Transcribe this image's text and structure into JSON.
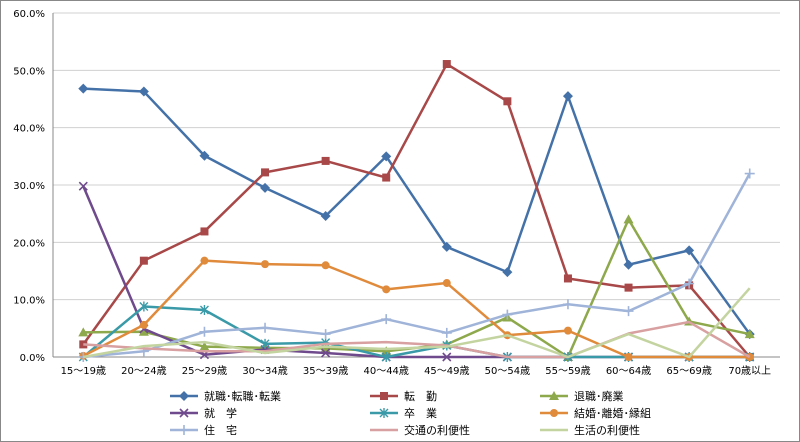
{
  "chart_data": {
    "type": "line",
    "categories": [
      "15～19歳",
      "20～24歳",
      "25～29歳",
      "30～34歳",
      "35～39歳",
      "40～44歳",
      "45～49歳",
      "50～54歳",
      "55～59歳",
      "60～64歳",
      "65～69歳",
      "70歳以上"
    ],
    "ylim": [
      0,
      60
    ],
    "yticks": [
      "0.0%",
      "10.0%",
      "20.0%",
      "30.0%",
      "40.0%",
      "50.0%",
      "60.0%"
    ],
    "grid": true,
    "legend_position": "bottom",
    "series": [
      {
        "name": "就職･転職･転業",
        "color": "#4472a8",
        "marker": "diamond",
        "values": [
          46.8,
          46.3,
          35.1,
          29.5,
          24.6,
          35.0,
          19.2,
          14.8,
          45.5,
          16.1,
          18.6,
          4.0
        ]
      },
      {
        "name": "転　勤",
        "color": "#a84848",
        "marker": "square",
        "values": [
          2.2,
          16.8,
          21.9,
          32.2,
          34.2,
          31.3,
          51.1,
          44.6,
          13.7,
          12.1,
          12.5,
          0.0
        ]
      },
      {
        "name": "退職･廃業",
        "color": "#8ea84c",
        "marker": "triangle",
        "values": [
          4.3,
          4.4,
          1.8,
          1.6,
          1.5,
          1.0,
          2.2,
          6.9,
          0.0,
          24.0,
          6.2,
          4.0
        ]
      },
      {
        "name": "就　学",
        "color": "#6f4a8c",
        "marker": "x",
        "values": [
          29.8,
          4.9,
          0.4,
          1.3,
          0.7,
          0.0,
          0.0,
          0.0,
          0.0,
          0.0,
          0.0,
          0.0
        ]
      },
      {
        "name": "卒　業",
        "color": "#3a9aa8",
        "marker": "asterisk",
        "values": [
          0.0,
          8.8,
          8.2,
          2.3,
          2.5,
          0.0,
          2.0,
          0.0,
          0.0,
          0.0,
          0.0,
          0.0
        ]
      },
      {
        "name": "結婚･離婚･縁組",
        "color": "#e08a3c",
        "marker": "circle",
        "values": [
          0.2,
          5.6,
          16.8,
          16.2,
          16.0,
          11.8,
          12.9,
          3.8,
          4.6,
          0.0,
          0.0,
          0.0
        ]
      },
      {
        "name": "住　宅",
        "color": "#9fb4d8",
        "marker": "plus",
        "values": [
          0.0,
          1.0,
          4.4,
          5.1,
          4.0,
          6.6,
          4.2,
          7.4,
          9.2,
          8.0,
          12.8,
          32.0
        ]
      },
      {
        "name": "交通の利便性",
        "color": "#d8a0a0",
        "marker": "none",
        "values": [
          2.2,
          1.5,
          1.0,
          1.0,
          2.3,
          2.6,
          2.0,
          0.0,
          0.0,
          4.1,
          6.1,
          0.0
        ]
      },
      {
        "name": "生活の利便性",
        "color": "#c4d4a0",
        "marker": "none",
        "values": [
          0.0,
          1.9,
          2.6,
          0.7,
          1.8,
          1.4,
          1.8,
          3.8,
          0.0,
          4.0,
          0.0,
          12.0
        ]
      }
    ]
  }
}
